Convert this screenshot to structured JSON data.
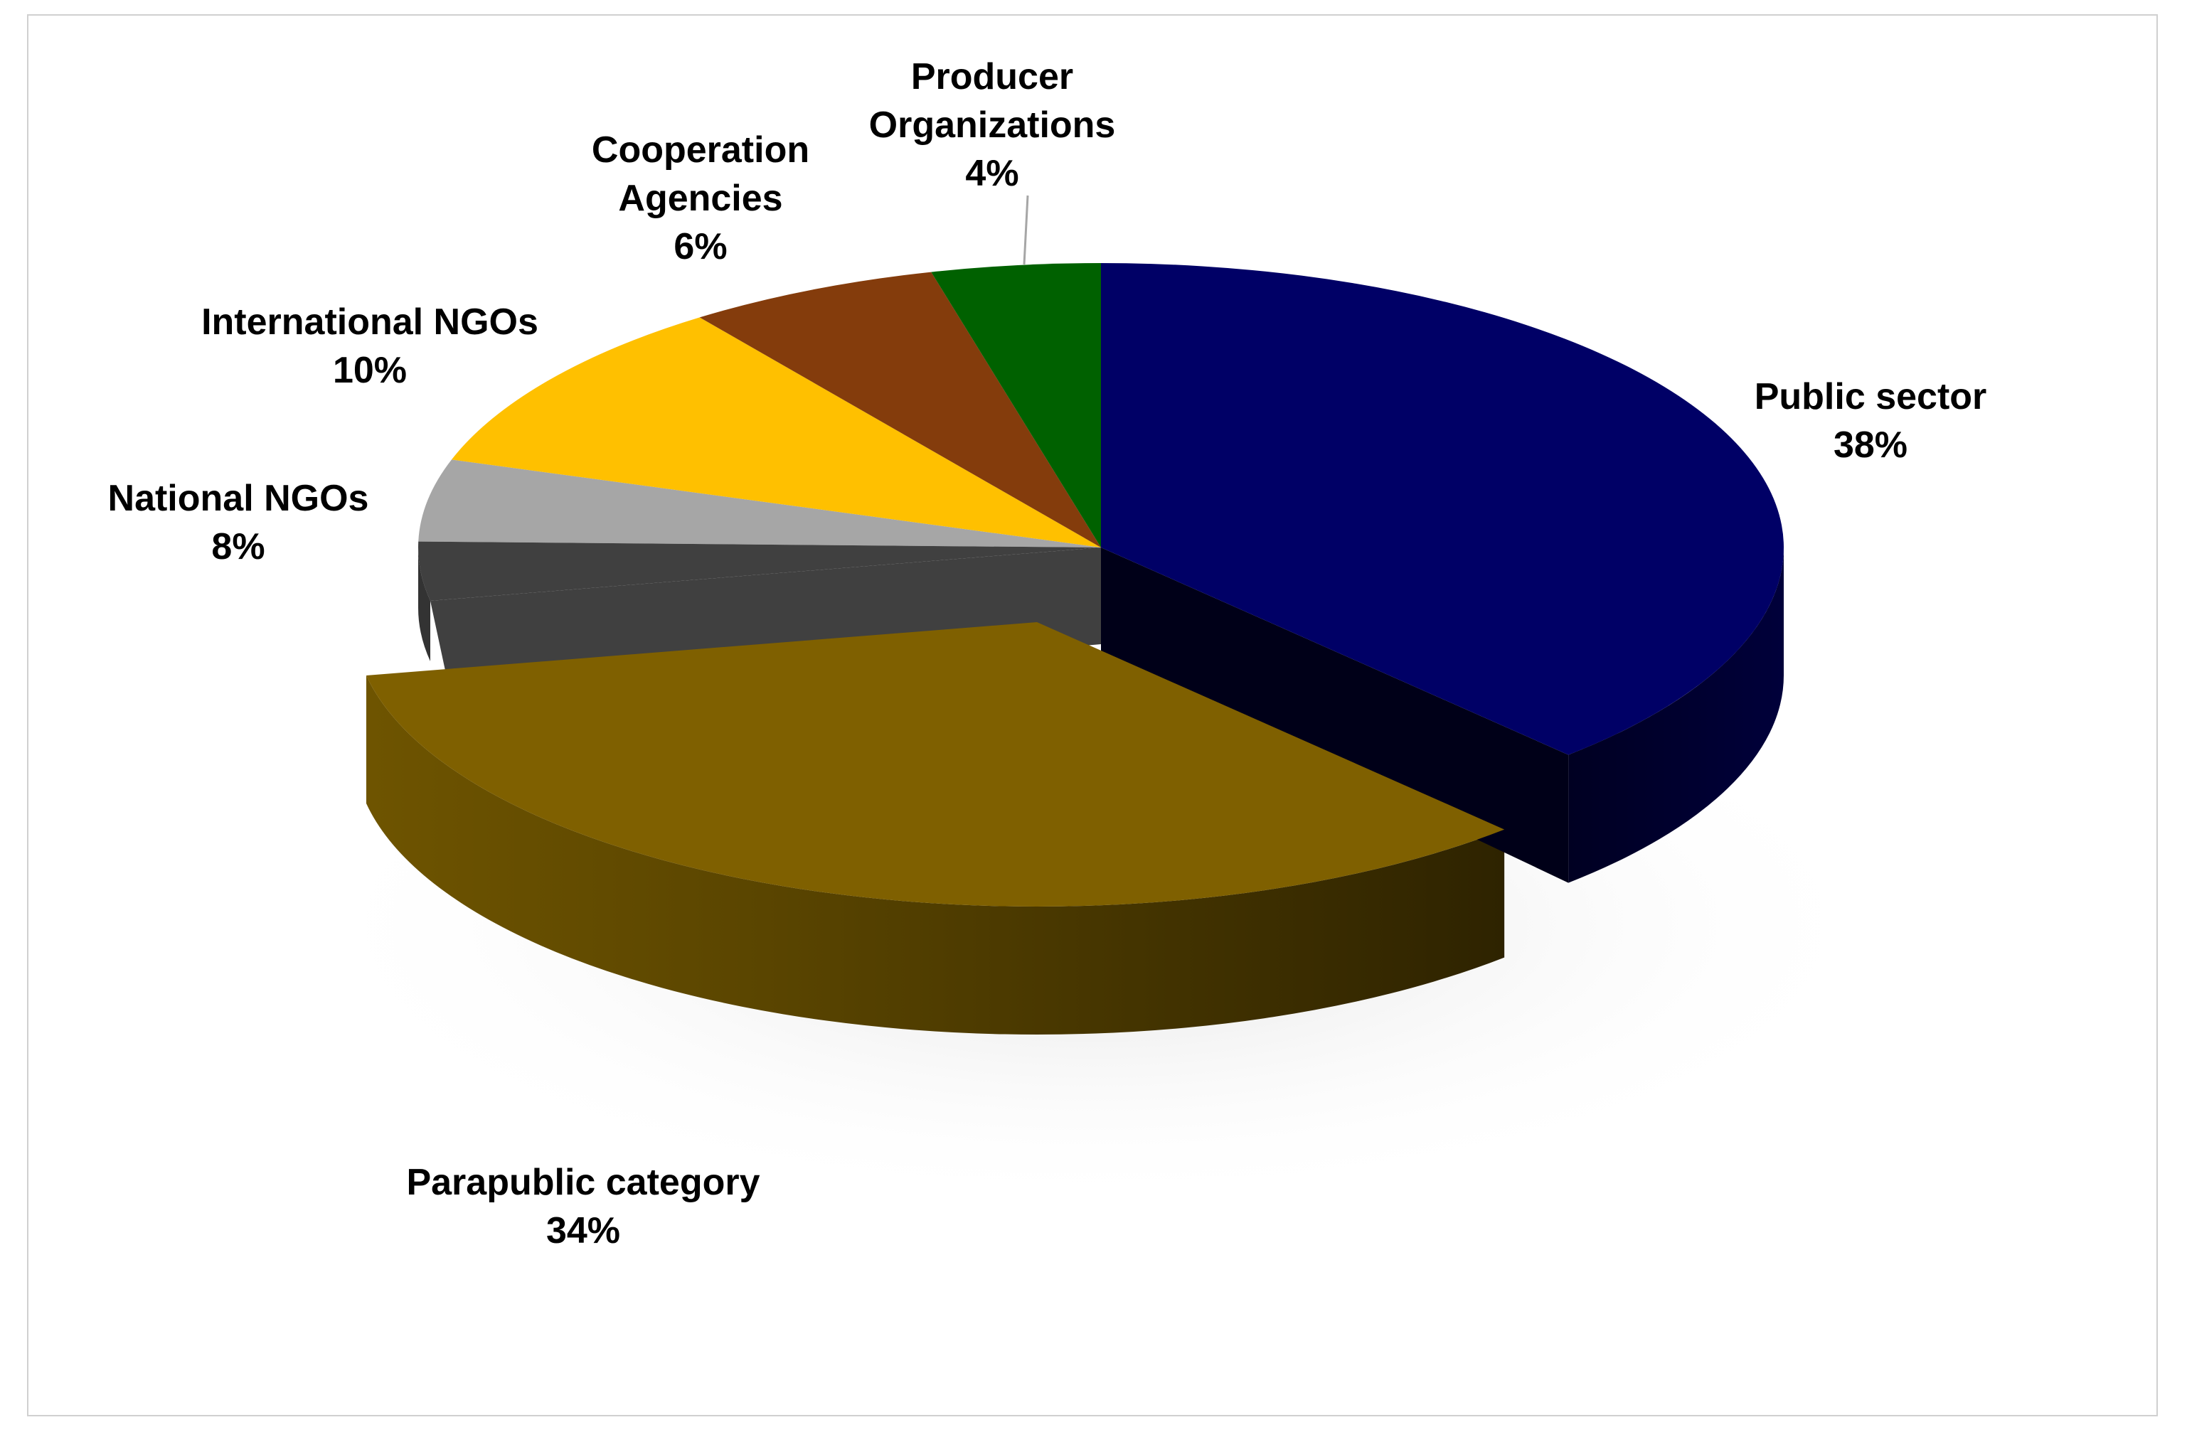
{
  "chart_data": {
    "type": "pie",
    "title": "",
    "slices": [
      {
        "label": "Public  sector",
        "value": 38,
        "value_label": "38%",
        "color": "#000066"
      },
      {
        "label": "Parapublic category",
        "value": 34,
        "value_label": "34%",
        "color": "#7f6000"
      },
      {
        "label": "",
        "value": 0,
        "value_label": "",
        "color": "#404040"
      },
      {
        "label": "National NGOs",
        "value": 8,
        "value_label": "8%",
        "color": "#a6a6a6"
      },
      {
        "label": "International NGOs",
        "value": 10,
        "value_label": "10%",
        "color": "#ffc000"
      },
      {
        "label": "Cooperation Agencies",
        "value": 6,
        "value_label": "6%",
        "color": "#843c0c"
      },
      {
        "label": "Producer Organizations",
        "value": 4,
        "value_label": "4%",
        "color": "#006100"
      }
    ],
    "legend": "none",
    "style": "3d-pie-exploded"
  }
}
